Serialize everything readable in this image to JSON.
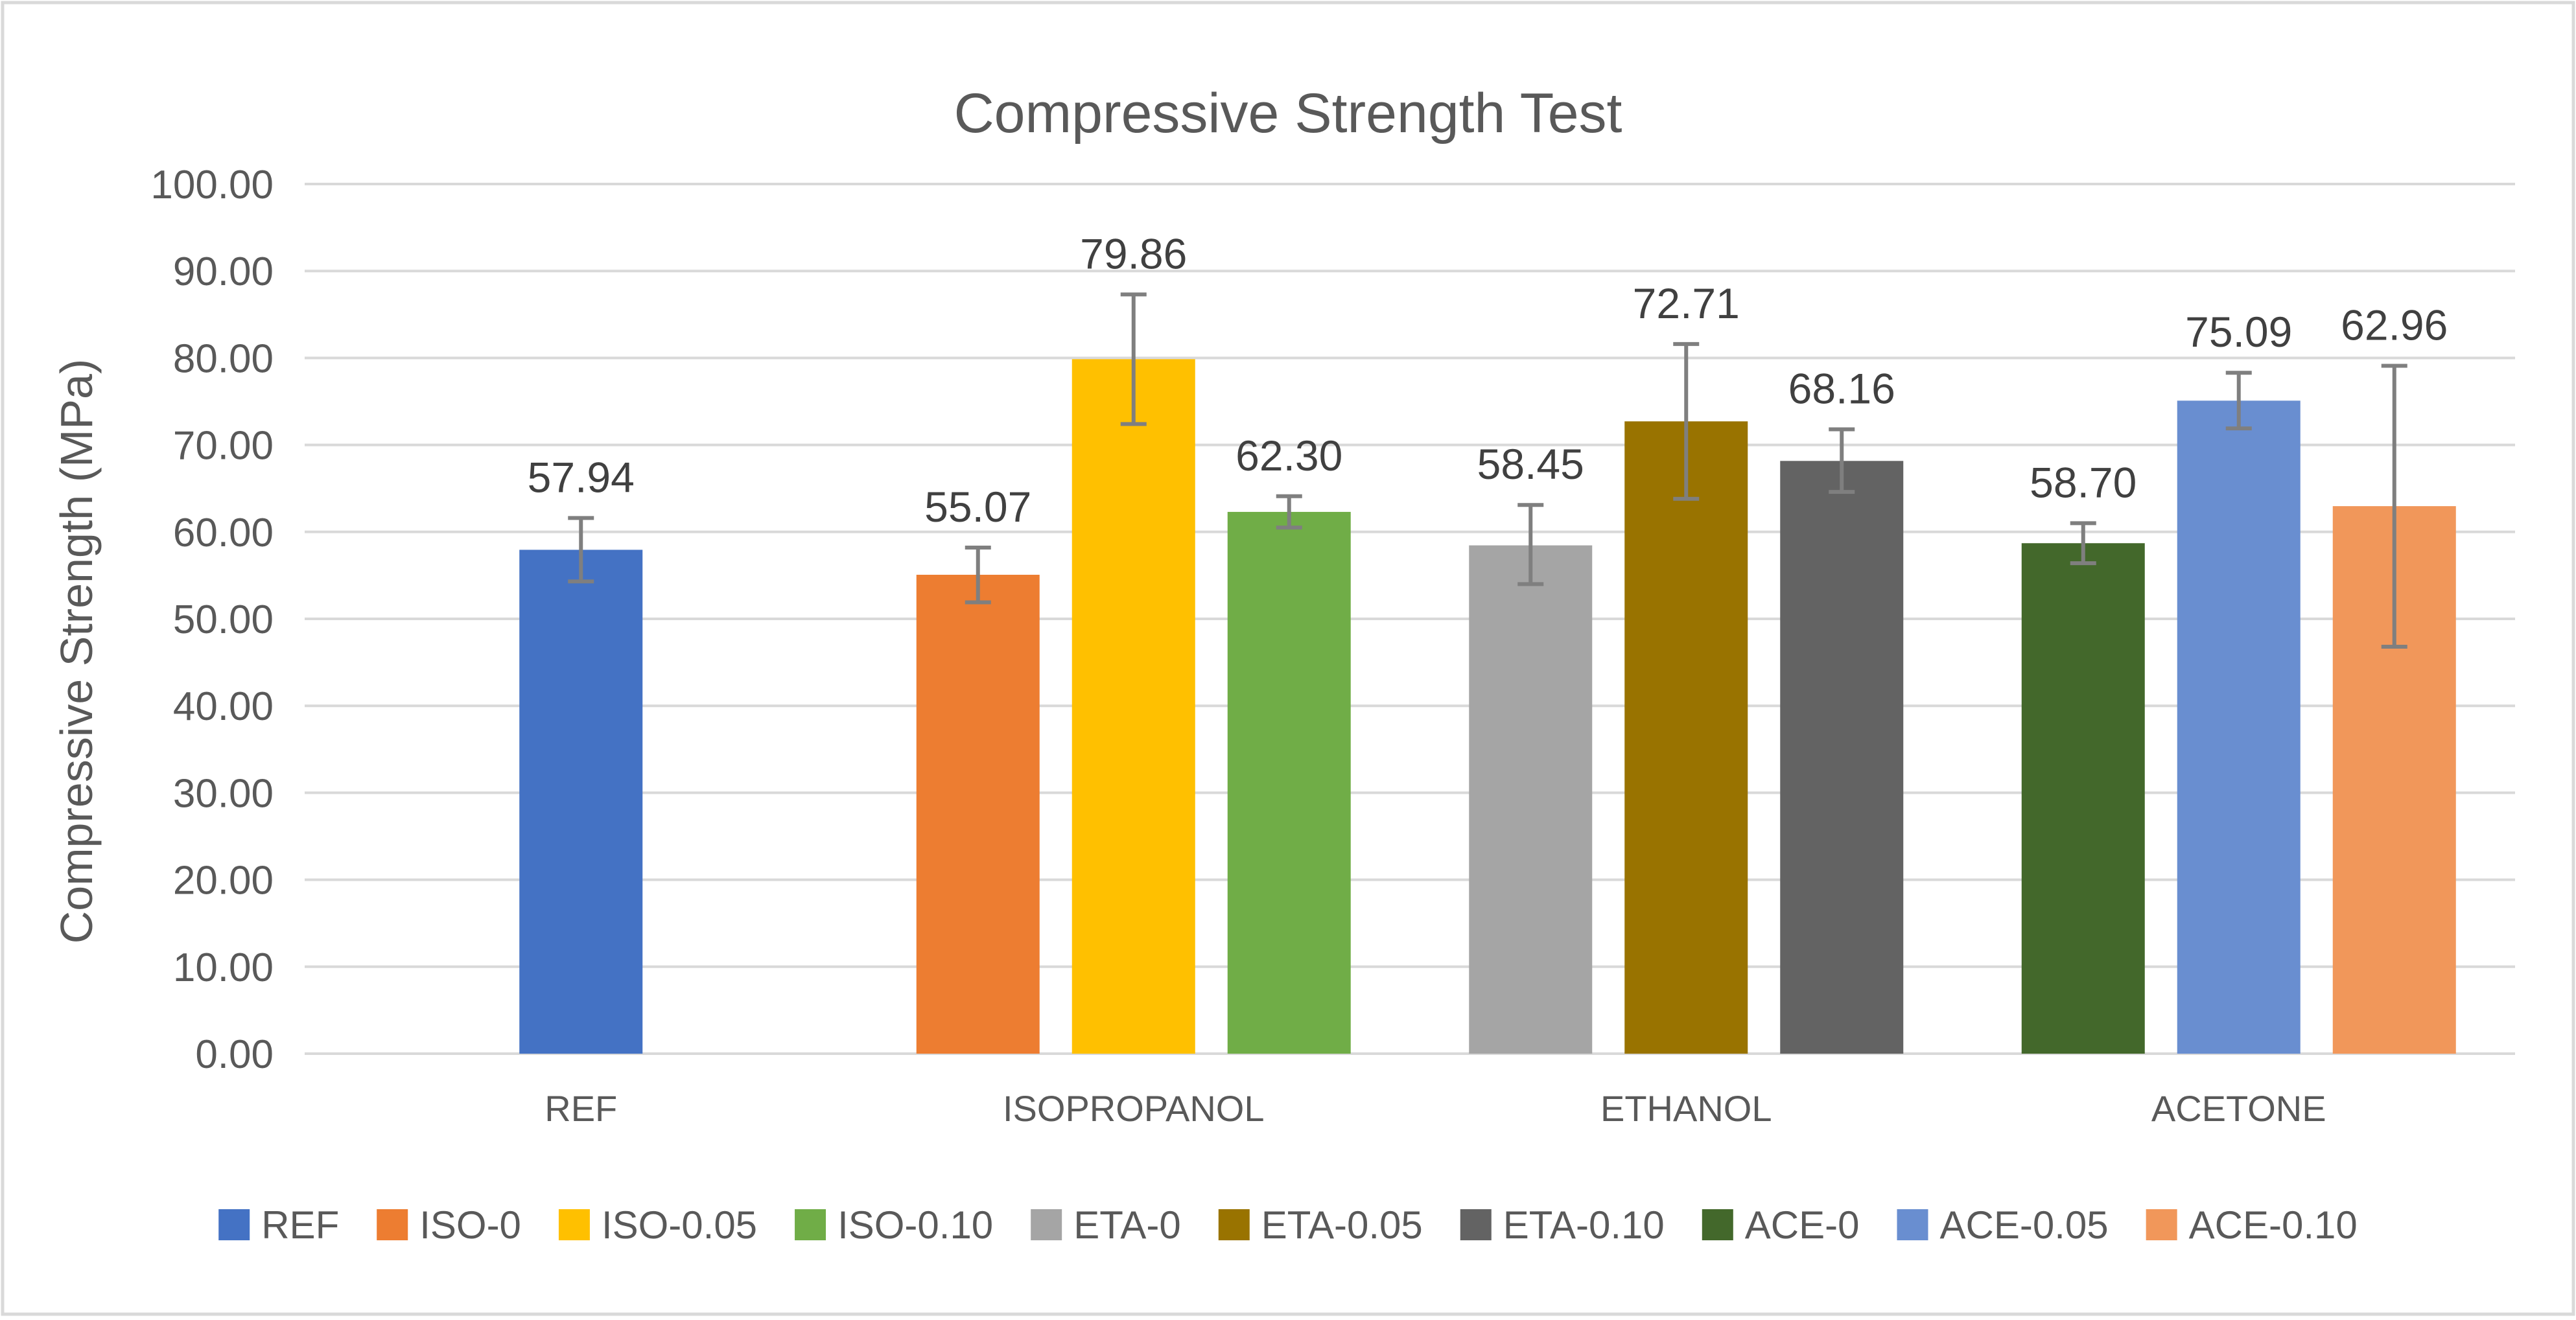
{
  "chart_data": {
    "type": "bar",
    "title": "Compressive Strength Test",
    "xlabel": "",
    "ylabel": "Compressive Strength (MPa)",
    "ylim": [
      0,
      100
    ],
    "ytick_step": 10,
    "ytick_labels": [
      "0.00",
      "10.00",
      "20.00",
      "30.00",
      "40.00",
      "50.00",
      "60.00",
      "70.00",
      "80.00",
      "90.00",
      "100.00"
    ],
    "grid": true,
    "legend_position": "bottom",
    "groups": [
      {
        "label": "REF",
        "series": [
          "REF"
        ]
      },
      {
        "label": "ISOPROPANOL",
        "series": [
          "ISO-0",
          "ISO-0.05",
          "ISO-0.10"
        ]
      },
      {
        "label": "ETHANOL",
        "series": [
          "ETA-0",
          "ETA-0.05",
          "ETA-0.10"
        ]
      },
      {
        "label": "ACETONE",
        "series": [
          "ACE-0",
          "ACE-0.05",
          "ACE-0.10"
        ]
      }
    ],
    "series": [
      {
        "name": "REF",
        "value": 57.94,
        "label": "57.94",
        "error_low": 54.3,
        "error_high": 61.6,
        "color": "#4472C4"
      },
      {
        "name": "ISO-0",
        "value": 55.07,
        "label": "55.07",
        "error_low": 51.9,
        "error_high": 58.2,
        "color": "#ED7D31"
      },
      {
        "name": "ISO-0.05",
        "value": 79.86,
        "label": "79.86",
        "error_low": 72.4,
        "error_high": 87.3,
        "color": "#FFC000"
      },
      {
        "name": "ISO-0.10",
        "value": 62.3,
        "label": "62.30",
        "error_low": 60.5,
        "error_high": 64.1,
        "color": "#70AD47"
      },
      {
        "name": "ETA-0",
        "value": 58.45,
        "label": "58.45",
        "error_low": 54.0,
        "error_high": 63.1,
        "color": "#A5A5A5"
      },
      {
        "name": "ETA-0.05",
        "value": 72.71,
        "label": "72.71",
        "error_low": 63.8,
        "error_high": 81.6,
        "color": "#997300"
      },
      {
        "name": "ETA-0.10",
        "value": 68.16,
        "label": "68.16",
        "error_low": 64.6,
        "error_high": 71.8,
        "color": "#636363"
      },
      {
        "name": "ACE-0",
        "value": 58.7,
        "label": "58.70",
        "error_low": 56.4,
        "error_high": 61.0,
        "color": "#43682B"
      },
      {
        "name": "ACE-0.05",
        "value": 75.09,
        "label": "75.09",
        "error_low": 71.9,
        "error_high": 78.3,
        "color": "#698ED0"
      },
      {
        "name": "ACE-0.10",
        "value": 62.96,
        "label": "62.96",
        "error_low": 46.8,
        "error_high": 79.1,
        "color": "#F1975A"
      }
    ]
  }
}
